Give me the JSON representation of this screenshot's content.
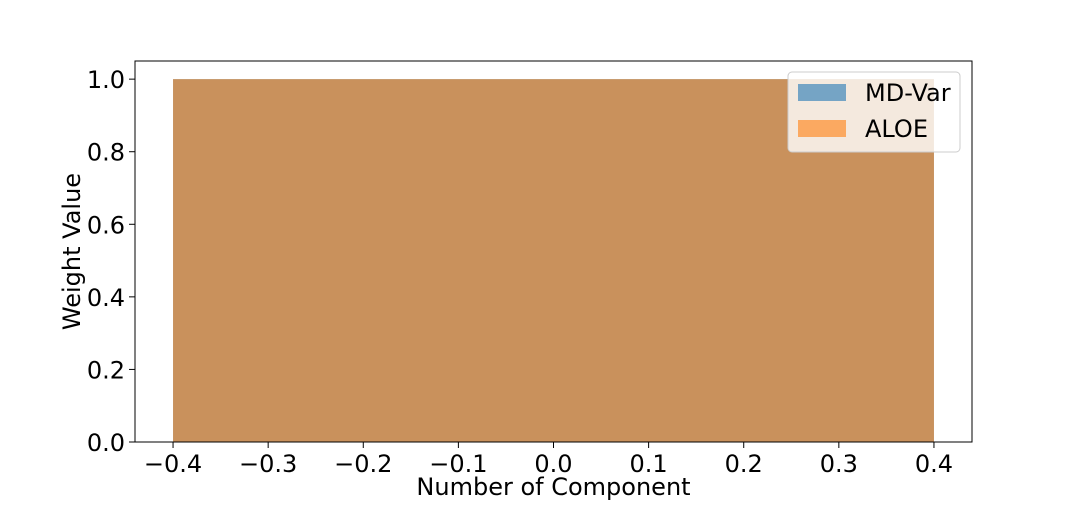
{
  "chart_data": {
    "type": "bar",
    "title": "",
    "xlabel": "Number of Component",
    "ylabel": "Weight Value",
    "xlim": [
      -0.44,
      0.44
    ],
    "ylim": [
      0.0,
      1.05
    ],
    "xticks": [
      -0.4,
      -0.3,
      -0.2,
      -0.1,
      0.0,
      0.1,
      0.2,
      0.3,
      0.4
    ],
    "xtick_labels": [
      "−0.4",
      "−0.3",
      "−0.2",
      "−0.1",
      "0.0",
      "0.1",
      "0.2",
      "0.3",
      "0.4"
    ],
    "yticks": [
      0.0,
      0.2,
      0.4,
      0.6,
      0.8,
      1.0
    ],
    "ytick_labels": [
      "0.0",
      "0.2",
      "0.4",
      "0.6",
      "0.8",
      "1.0"
    ],
    "grid": false,
    "legend_position": "upper-right",
    "bar_width": 0.8,
    "categories": [
      0
    ],
    "series": [
      {
        "name": "MD-Var",
        "values": [
          1.0
        ],
        "color": "#1f77b4",
        "opacity": 0.6
      },
      {
        "name": "ALOE",
        "values": [
          1.0
        ],
        "color": "#ff7f0e",
        "opacity": 0.6
      }
    ]
  }
}
